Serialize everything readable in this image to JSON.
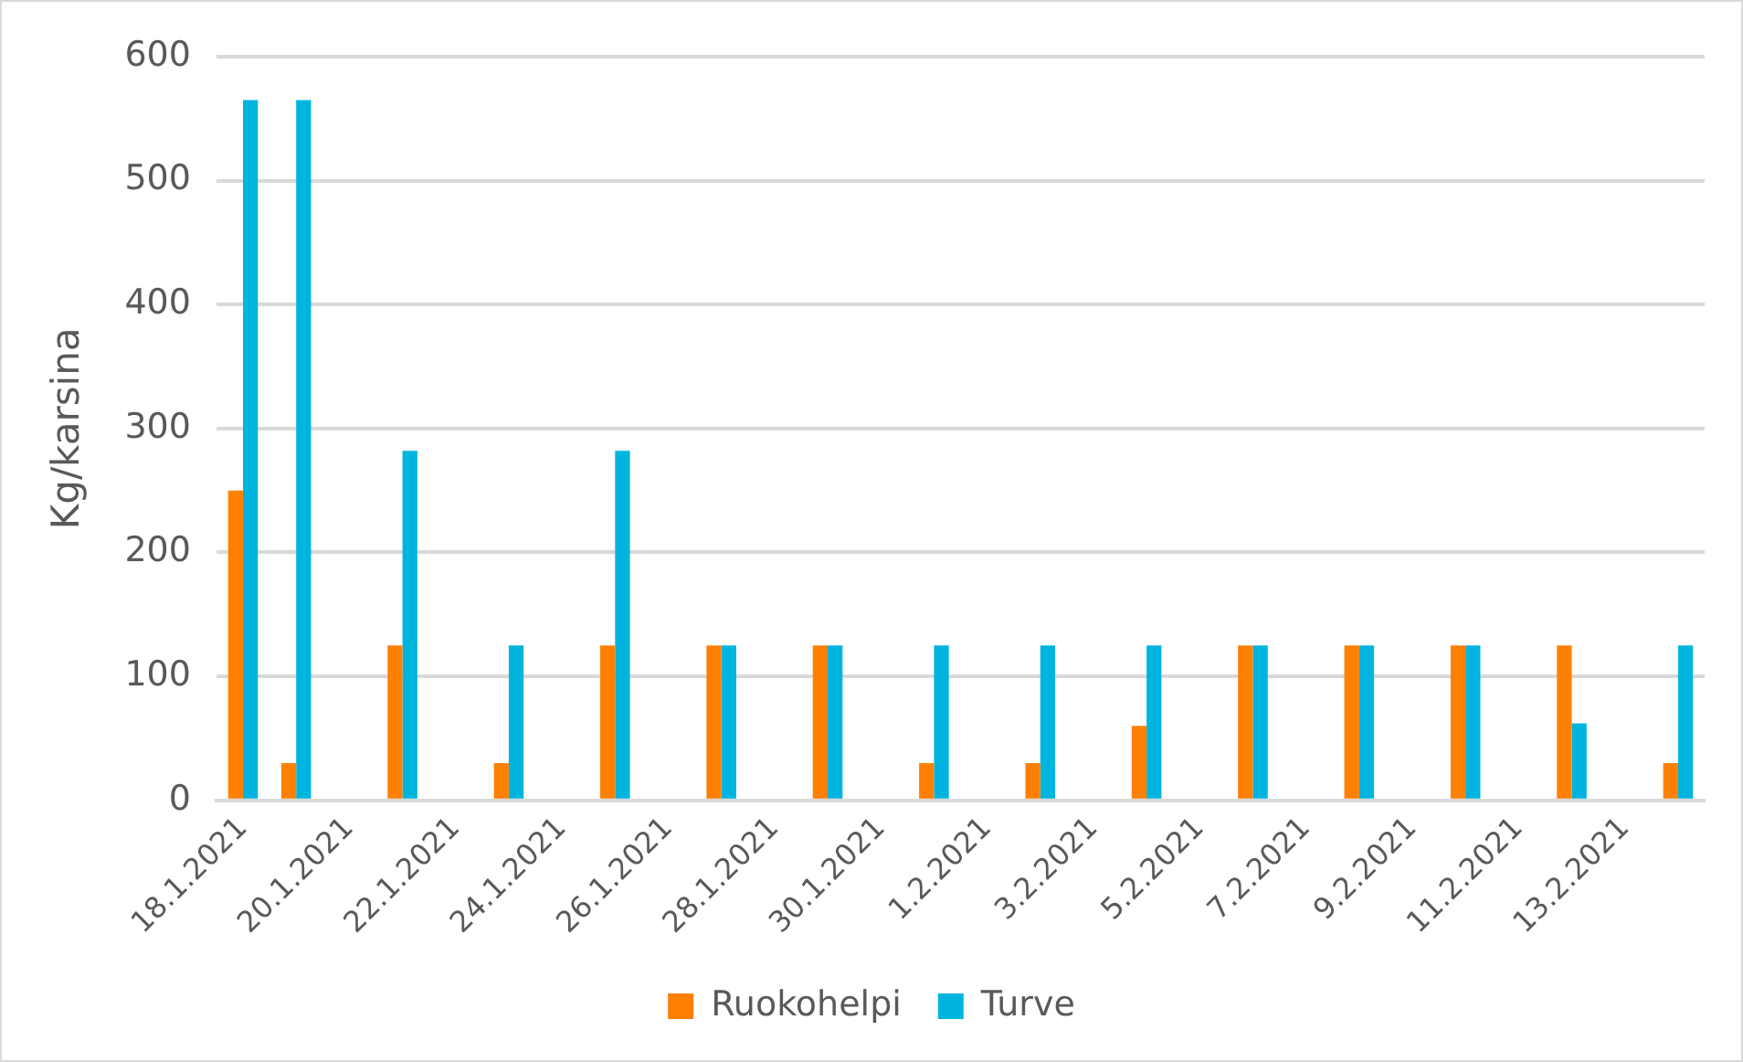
{
  "chart_data": {
    "type": "bar",
    "ylabel": "Kg/karsina",
    "categories": [
      "18.1.2021",
      null,
      "20.1.2021",
      null,
      "22.1.2021",
      null,
      "24.1.2021",
      null,
      "26.1.2021",
      null,
      "28.1.2021",
      null,
      "30.1.2021",
      null,
      "1.2.2021",
      null,
      "3.2.2021",
      null,
      "5.2.2021",
      null,
      "7.2.2021",
      null,
      "9.2.2021",
      null,
      "11.2.2021",
      null,
      "13.2.2021",
      null
    ],
    "series": [
      {
        "name": "Ruokohelpi",
        "color": "#ff8000",
        "values": [
          250,
          30,
          null,
          125,
          null,
          30,
          null,
          125,
          null,
          125,
          null,
          125,
          null,
          30,
          null,
          30,
          null,
          60,
          null,
          125,
          null,
          125,
          null,
          125,
          null,
          125,
          null,
          30
        ]
      },
      {
        "name": "Turve",
        "color": "#00b4e0",
        "values": [
          565,
          565,
          null,
          282,
          null,
          125,
          null,
          282,
          null,
          125,
          null,
          125,
          null,
          125,
          null,
          125,
          null,
          125,
          null,
          125,
          null,
          125,
          null,
          125,
          null,
          62,
          null,
          125
        ]
      }
    ],
    "ylim": [
      0,
      600
    ],
    "yticks": [
      0,
      100,
      200,
      300,
      400,
      500,
      600
    ],
    "grid": "y",
    "legend": "bottom"
  }
}
